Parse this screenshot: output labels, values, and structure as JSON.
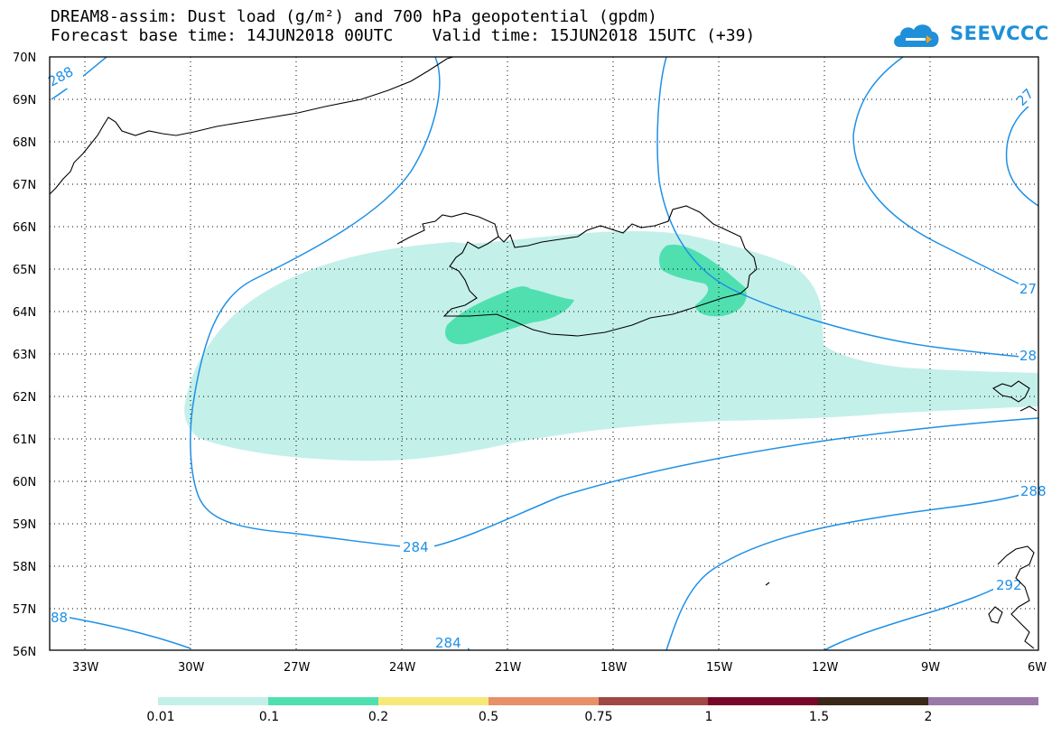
{
  "header": {
    "title_line1": "DREAM8-assim: Dust load (g/m²) and 700 hPa geopotential (gpdm)",
    "title_line2": "Forecast base time: 14JUN2018 00UTC    Valid time: 15JUN2018 15UTC (+39)"
  },
  "logo": {
    "text": "SEEVCCC",
    "color": "#1e8fd8"
  },
  "map": {
    "lat_labels": [
      "70N",
      "69N",
      "68N",
      "67N",
      "66N",
      "65N",
      "64N",
      "63N",
      "62N",
      "61N",
      "60N",
      "59N",
      "58N",
      "57N",
      "56N"
    ],
    "lon_labels": [
      "33W",
      "30W",
      "27W",
      "24W",
      "21W",
      "18W",
      "15W",
      "12W",
      "9W",
      "6W"
    ],
    "contour_labels": [
      "288",
      "284",
      "284",
      "288",
      "27",
      "27",
      "28",
      "28",
      "292",
      "88"
    ],
    "contour_color": "#1e90e6",
    "coast_color": "#000000",
    "dust_colors": {
      "light": "#c4f0ea",
      "medium": "#50e0b0"
    }
  },
  "colorbar": {
    "labels": [
      "0.01",
      "0.1",
      "0.2",
      "0.5",
      "0.75",
      "1",
      "1.5",
      "2"
    ],
    "colors": [
      "#c4f0ea",
      "#50e0b0",
      "#f8e878",
      "#e89068",
      "#a04844",
      "#780828",
      "#3a2818",
      "#9a78a8"
    ]
  }
}
